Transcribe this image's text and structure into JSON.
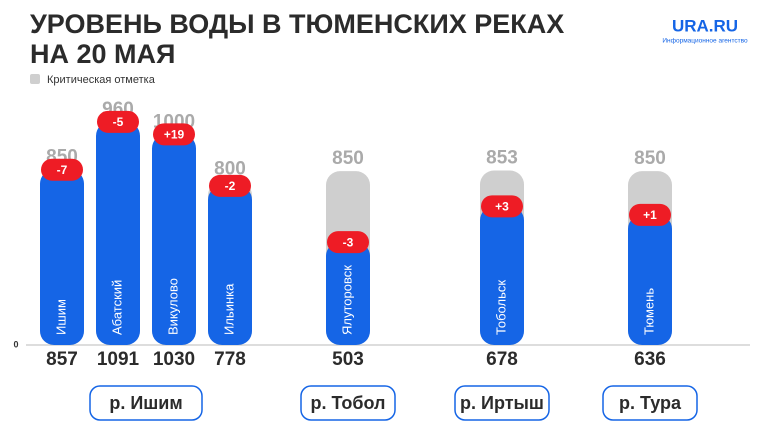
{
  "brand": {
    "name": "URA.RU",
    "tagline": "Информационное агентство"
  },
  "chart_data": {
    "type": "bar",
    "title": [
      "УРОВЕНЬ ВОДЫ В ТЮМЕНСКИХ РЕКАХ",
      "НА 20 МАЯ"
    ],
    "critical_series": {
      "name": "Критическая отметка",
      "color": "#cfcfcf"
    },
    "current_color": "#1565e6",
    "change_color": "#ee1c25",
    "ylim": [
      0,
      1100
    ],
    "yticks": [
      0
    ],
    "groups": [
      {
        "name": "р. Ишим",
        "categories": [
          "Ишим",
          "Абатский",
          "Викулово",
          "Ильинка"
        ],
        "critical": [
          850,
          960,
          1000,
          800
        ],
        "current": [
          857,
          1091,
          1030,
          778
        ],
        "change": [
          -7,
          -5,
          19,
          -2
        ],
        "change_labels": [
          "-7",
          "-5",
          "+19",
          "-2"
        ]
      },
      {
        "name": "р. Тобол",
        "categories": [
          "Ялуторовск"
        ],
        "critical": [
          850
        ],
        "current": [
          503
        ],
        "change": [
          -3
        ],
        "change_labels": [
          "-3"
        ]
      },
      {
        "name": "р. Иртыш",
        "categories": [
          "Тобольск"
        ],
        "critical": [
          853
        ],
        "current": [
          678
        ],
        "change": [
          3
        ],
        "change_labels": [
          "+3"
        ]
      },
      {
        "name": "р. Тура",
        "categories": [
          "Тюмень"
        ],
        "critical": [
          850
        ],
        "current": [
          636
        ],
        "change": [
          1
        ],
        "change_labels": [
          "+1"
        ]
      }
    ]
  }
}
